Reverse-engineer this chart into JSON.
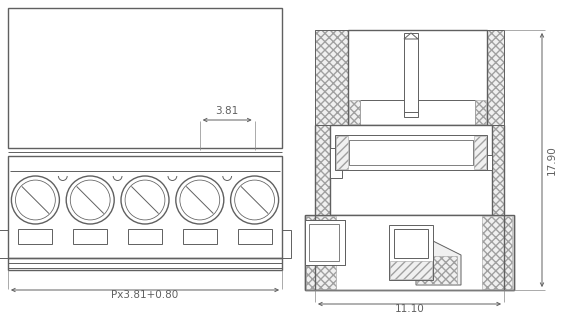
{
  "bg_color": "#ffffff",
  "lc": "#606060",
  "lw": 0.7,
  "lw2": 1.0,
  "n_pins": 5,
  "dim_381": "3.81",
  "dim_px": "Px3.81+0.80",
  "dim_1110": "11.10",
  "dim_1790": "17.90",
  "fs": 7.5,
  "hatch_fc": "#f0f0f0",
  "hatch_ec": "#a0a0a0"
}
